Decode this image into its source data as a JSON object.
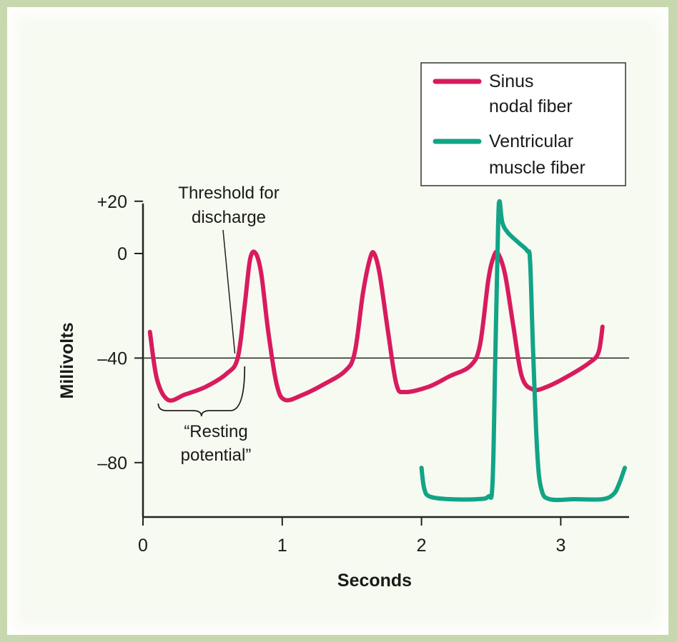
{
  "chart_data": {
    "type": "line",
    "title": "",
    "xlabel": "Seconds",
    "ylabel": "Millivolts",
    "xlim": [
      0,
      3.5
    ],
    "ylim": [
      -100,
      20
    ],
    "x_ticks": [
      {
        "value": 0,
        "label": "0"
      },
      {
        "value": 1,
        "label": "1"
      },
      {
        "value": 2,
        "label": "2"
      },
      {
        "value": 3,
        "label": "3"
      }
    ],
    "y_ticks": [
      {
        "value": 20,
        "label": "+20"
      },
      {
        "value": 0,
        "label": "0"
      },
      {
        "value": -40,
        "label": "–40"
      },
      {
        "value": -80,
        "label": "–80"
      }
    ],
    "grid": false,
    "legend_position": "top-right",
    "reference_line": {
      "y": -40
    },
    "series": [
      {
        "name_lines": [
          "Sinus",
          "nodal fiber"
        ],
        "color": "#d81b5f",
        "points": [
          [
            0.05,
            -30
          ],
          [
            0.1,
            -48
          ],
          [
            0.18,
            -56
          ],
          [
            0.3,
            -54
          ],
          [
            0.45,
            -51
          ],
          [
            0.6,
            -46
          ],
          [
            0.68,
            -40
          ],
          [
            0.73,
            -20
          ],
          [
            0.77,
            -2
          ],
          [
            0.81,
            0
          ],
          [
            0.85,
            -8
          ],
          [
            0.9,
            -30
          ],
          [
            0.96,
            -50
          ],
          [
            1.02,
            -56
          ],
          [
            1.15,
            -54
          ],
          [
            1.3,
            -50
          ],
          [
            1.45,
            -45
          ],
          [
            1.52,
            -38
          ],
          [
            1.58,
            -15
          ],
          [
            1.63,
            -2
          ],
          [
            1.66,
            0
          ],
          [
            1.7,
            -8
          ],
          [
            1.76,
            -30
          ],
          [
            1.82,
            -50
          ],
          [
            1.88,
            -53
          ],
          [
            2.05,
            -51
          ],
          [
            2.2,
            -47
          ],
          [
            2.35,
            -43
          ],
          [
            2.42,
            -35
          ],
          [
            2.48,
            -10
          ],
          [
            2.52,
            -1
          ],
          [
            2.55,
            0
          ],
          [
            2.6,
            -8
          ],
          [
            2.66,
            -28
          ],
          [
            2.72,
            -47
          ],
          [
            2.8,
            -52
          ],
          [
            2.9,
            -51
          ],
          [
            3.05,
            -47
          ],
          [
            3.2,
            -42
          ],
          [
            3.27,
            -38
          ],
          [
            3.3,
            -28
          ]
        ]
      },
      {
        "name_lines": [
          "Ventricular",
          "muscle fiber"
        ],
        "color": "#12a487",
        "points": [
          [
            2.0,
            -82
          ],
          [
            2.02,
            -90
          ],
          [
            2.06,
            -93
          ],
          [
            2.2,
            -94
          ],
          [
            2.4,
            -94
          ],
          [
            2.48,
            -93
          ],
          [
            2.51,
            -88
          ],
          [
            2.53,
            -40
          ],
          [
            2.55,
            10
          ],
          [
            2.56,
            20
          ],
          [
            2.58,
            12
          ],
          [
            2.62,
            8
          ],
          [
            2.7,
            4
          ],
          [
            2.76,
            1
          ],
          [
            2.78,
            -3
          ],
          [
            2.8,
            -35
          ],
          [
            2.83,
            -75
          ],
          [
            2.86,
            -90
          ],
          [
            2.92,
            -94
          ],
          [
            3.1,
            -94
          ],
          [
            3.3,
            -94
          ],
          [
            3.38,
            -92
          ],
          [
            3.42,
            -88
          ],
          [
            3.46,
            -82
          ]
        ]
      }
    ],
    "annotations": [
      {
        "lines": [
          "Threshold for",
          "discharge"
        ],
        "points_to": {
          "x": 0.66,
          "y": -41
        }
      },
      {
        "lines": [
          "“Resting",
          "potential”"
        ],
        "spans_x": [
          0.12,
          0.72
        ]
      }
    ]
  }
}
